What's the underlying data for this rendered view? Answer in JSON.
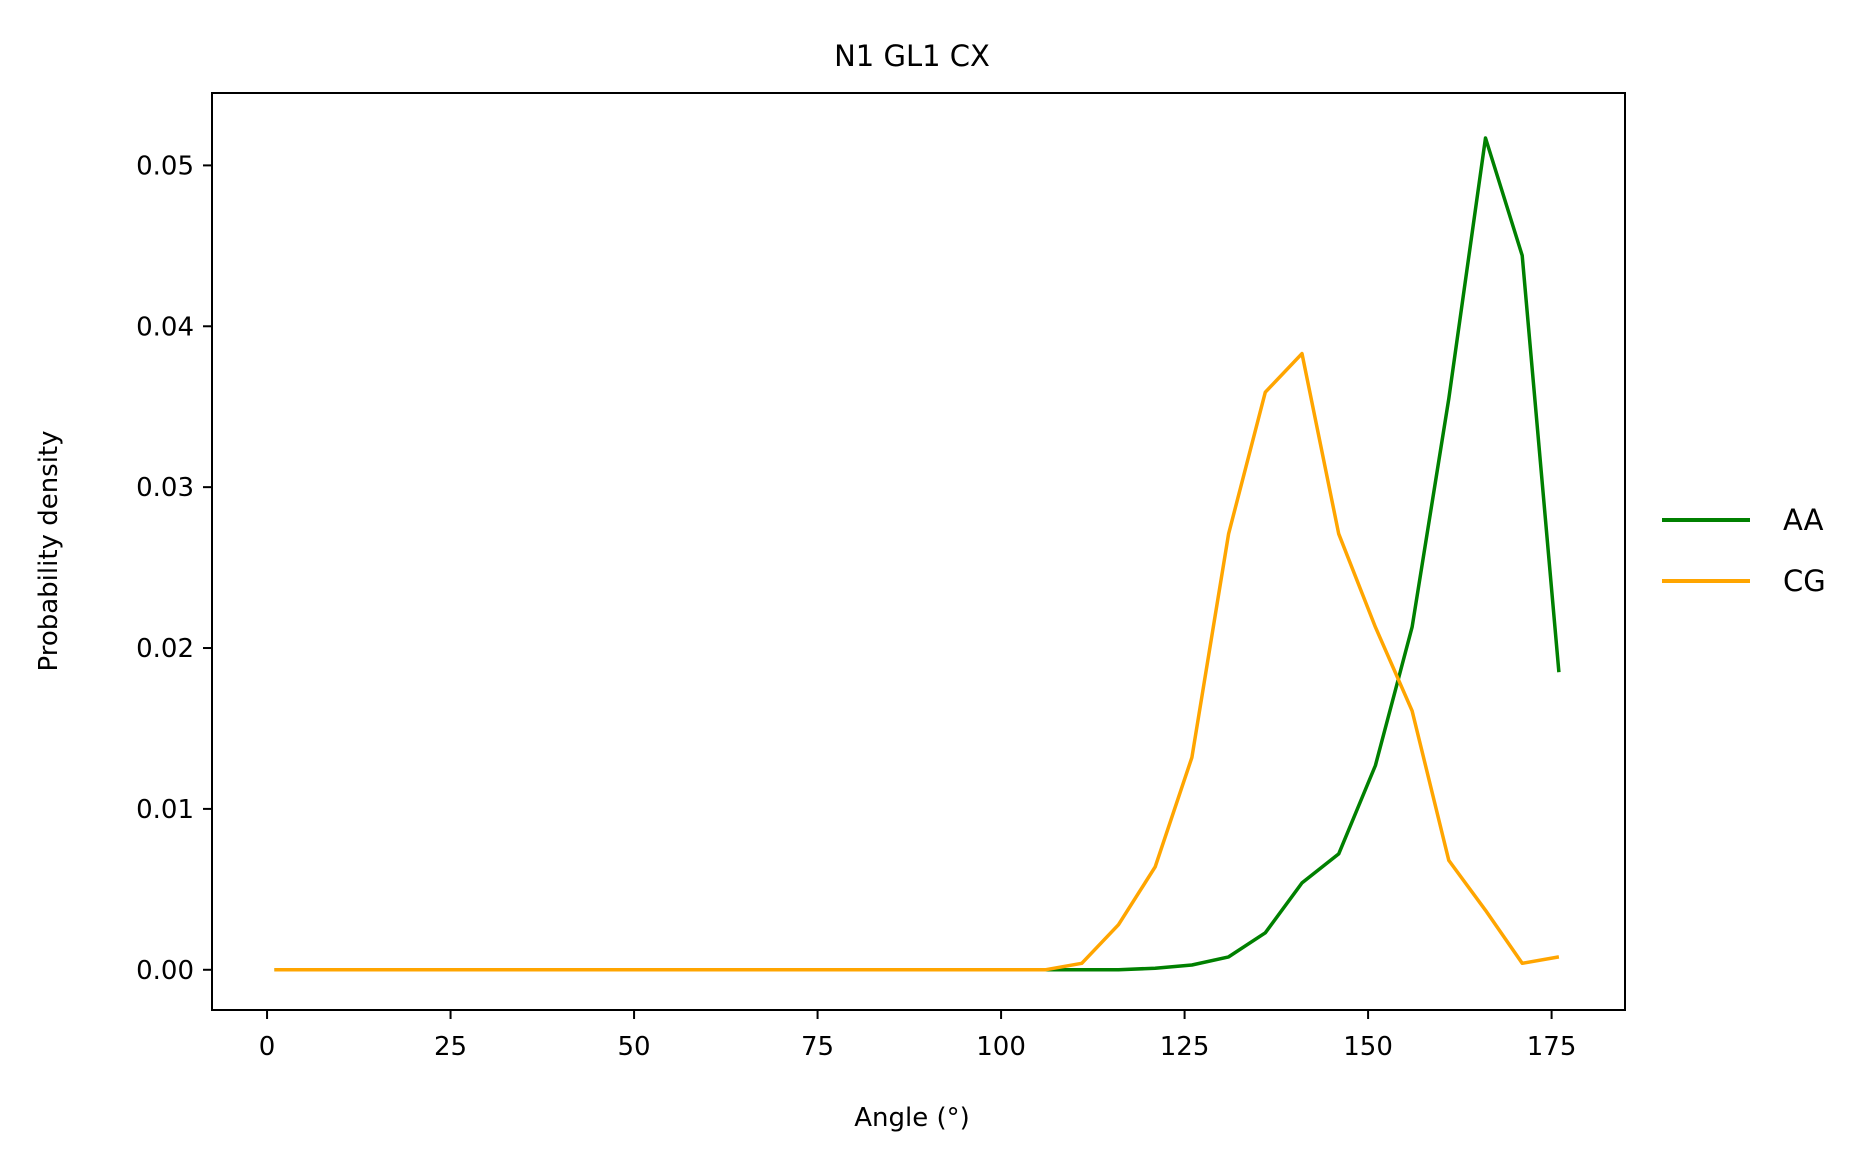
{
  "chart_data": {
    "type": "line",
    "title": "N1 GL1 CX",
    "xlabel": "Angle (°)",
    "ylabel": "Probability density",
    "xlim": [
      -7.5,
      185
    ],
    "ylim": [
      -0.0025,
      0.0545
    ],
    "xticks": [
      0,
      25,
      50,
      75,
      100,
      125,
      150,
      175
    ],
    "xtick_labels": [
      "0",
      "25",
      "50",
      "75",
      "100",
      "125",
      "150",
      "175"
    ],
    "yticks": [
      0.0,
      0.01,
      0.02,
      0.03,
      0.04,
      0.05
    ],
    "ytick_labels": [
      "0.00",
      "0.01",
      "0.02",
      "0.03",
      "0.04",
      "0.05"
    ],
    "grid": false,
    "legend_position": "right, outside plot",
    "x": [
      1,
      6,
      11,
      16,
      21,
      26,
      31,
      36,
      41,
      46,
      51,
      56,
      61,
      66,
      71,
      76,
      81,
      86,
      91,
      96,
      101,
      106,
      111,
      116,
      121,
      126,
      131,
      136,
      141,
      146,
      151,
      156,
      161,
      166,
      171,
      176
    ],
    "series": [
      {
        "name": "AA",
        "color": "#008000",
        "values": [
          0,
          0,
          0,
          0,
          0,
          0,
          0,
          0,
          0,
          0,
          0,
          0,
          0,
          0,
          0,
          0,
          0,
          0,
          0,
          0,
          0,
          0,
          0,
          0,
          0.0001,
          0.0003,
          0.0008,
          0.0023,
          0.0054,
          0.0072,
          0.0127,
          0.0213,
          0.0355,
          0.0517,
          0.0444,
          0.0185
        ]
      },
      {
        "name": "CG",
        "color": "#FFA500",
        "values": [
          0,
          0,
          0,
          0,
          0,
          0,
          0,
          0,
          0,
          0,
          0,
          0,
          0,
          0,
          0,
          0,
          0,
          0,
          0,
          0,
          0,
          0,
          0.0004,
          0.0028,
          0.0064,
          0.0132,
          0.0271,
          0.0359,
          0.0383,
          0.0271,
          0.0213,
          0.0161,
          0.0068,
          0.0037,
          0.0004,
          0.0008
        ]
      }
    ]
  }
}
